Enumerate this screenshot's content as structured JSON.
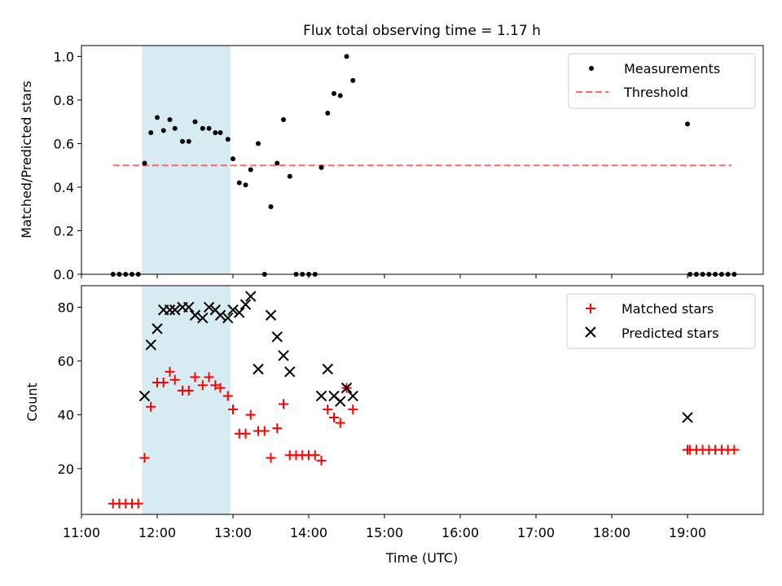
{
  "figure_title": "Flux total observing time = 1.17 h",
  "chart_data": [
    {
      "type": "scatter",
      "ylabel": "Matched/Predicted stars",
      "xlabel": "",
      "xlim": [
        "11:00",
        "20:00"
      ],
      "ylim": [
        0,
        1.05
      ],
      "yticks": [
        0.0,
        0.2,
        0.4,
        0.6,
        0.8,
        1.0
      ],
      "ytick_labels": [
        "0.0",
        "0.2",
        "0.4",
        "0.6",
        "0.8",
        "1.0"
      ],
      "highlight_span": {
        "start": "11:48",
        "end": "12:58",
        "color": "#add8e6"
      },
      "legend_position": "top-right",
      "legend": [
        {
          "label": "Measurements",
          "marker": "dot",
          "color": "#000000"
        },
        {
          "label": "Threshold",
          "marker": "dashed-line",
          "color": "#ff6666"
        }
      ],
      "threshold": {
        "y": 0.5,
        "x_start": "11:25",
        "x_end": "19:35"
      },
      "series": [
        {
          "name": "Measurements",
          "color": "#000000",
          "points": [
            [
              "11:25",
              0
            ],
            [
              "11:30",
              0
            ],
            [
              "11:35",
              0
            ],
            [
              "11:40",
              0
            ],
            [
              "11:45",
              0
            ],
            [
              "11:50",
              0.51
            ],
            [
              "11:55",
              0.65
            ],
            [
              "12:00",
              0.72
            ],
            [
              "12:05",
              0.66
            ],
            [
              "12:10",
              0.71
            ],
            [
              "12:14",
              0.67
            ],
            [
              "12:20",
              0.61
            ],
            [
              "12:25",
              0.61
            ],
            [
              "12:30",
              0.7
            ],
            [
              "12:36",
              0.67
            ],
            [
              "12:41",
              0.67
            ],
            [
              "12:46",
              0.65
            ],
            [
              "12:50",
              0.65
            ],
            [
              "12:56",
              0.62
            ],
            [
              "13:00",
              0.53
            ],
            [
              "13:05",
              0.42
            ],
            [
              "13:10",
              0.41
            ],
            [
              "13:14",
              0.48
            ],
            [
              "13:20",
              0.6
            ],
            [
              "13:25",
              0
            ],
            [
              "13:30",
              0.31
            ],
            [
              "13:35",
              0.51
            ],
            [
              "13:40",
              0.71
            ],
            [
              "13:45",
              0.45
            ],
            [
              "13:50",
              0
            ],
            [
              "13:55",
              0
            ],
            [
              "14:00",
              0
            ],
            [
              "14:05",
              0
            ],
            [
              "14:10",
              0.49
            ],
            [
              "14:15",
              0.74
            ],
            [
              "14:20",
              0.83
            ],
            [
              "14:25",
              0.82
            ],
            [
              "14:30",
              1.0
            ],
            [
              "14:35",
              0.89
            ],
            [
              "19:00",
              0.69
            ],
            [
              "19:02",
              0
            ],
            [
              "19:07",
              0
            ],
            [
              "19:12",
              0
            ],
            [
              "19:17",
              0
            ],
            [
              "19:22",
              0
            ],
            [
              "19:27",
              0
            ],
            [
              "19:32",
              0
            ],
            [
              "19:37",
              0
            ]
          ]
        }
      ]
    },
    {
      "type": "scatter",
      "ylabel": "Count",
      "xlabel": "Time (UTC)",
      "xlim": [
        "11:00",
        "20:00"
      ],
      "ylim": [
        3,
        88
      ],
      "yticks": [
        20,
        40,
        60,
        80
      ],
      "ytick_labels": [
        "20",
        "40",
        "60",
        "80"
      ],
      "xticks": [
        "11:00",
        "12:00",
        "13:00",
        "14:00",
        "15:00",
        "16:00",
        "17:00",
        "18:00",
        "19:00"
      ],
      "highlight_span": {
        "start": "11:48",
        "end": "12:58",
        "color": "#add8e6"
      },
      "legend_position": "top-right",
      "series": [
        {
          "name": "Matched stars",
          "marker": "plus",
          "color": "#ff0000",
          "points": [
            [
              "11:25",
              7
            ],
            [
              "11:30",
              7
            ],
            [
              "11:35",
              7
            ],
            [
              "11:40",
              7
            ],
            [
              "11:45",
              7
            ],
            [
              "11:50",
              24
            ],
            [
              "11:55",
              43
            ],
            [
              "12:00",
              52
            ],
            [
              "12:05",
              52
            ],
            [
              "12:10",
              56
            ],
            [
              "12:14",
              53
            ],
            [
              "12:20",
              49
            ],
            [
              "12:25",
              49
            ],
            [
              "12:30",
              54
            ],
            [
              "12:36",
              51
            ],
            [
              "12:41",
              54
            ],
            [
              "12:46",
              51
            ],
            [
              "12:50",
              50
            ],
            [
              "12:56",
              47
            ],
            [
              "13:00",
              42
            ],
            [
              "13:05",
              33
            ],
            [
              "13:10",
              33
            ],
            [
              "13:14",
              40
            ],
            [
              "13:20",
              34
            ],
            [
              "13:25",
              34
            ],
            [
              "13:30",
              24
            ],
            [
              "13:35",
              35
            ],
            [
              "13:40",
              44
            ],
            [
              "13:45",
              25
            ],
            [
              "13:50",
              25
            ],
            [
              "13:55",
              25
            ],
            [
              "14:00",
              25
            ],
            [
              "14:05",
              25
            ],
            [
              "14:10",
              23
            ],
            [
              "14:15",
              42
            ],
            [
              "14:20",
              39
            ],
            [
              "14:25",
              37
            ],
            [
              "14:30",
              50
            ],
            [
              "14:35",
              42
            ],
            [
              "19:00",
              27
            ],
            [
              "19:02",
              27
            ],
            [
              "19:07",
              27
            ],
            [
              "19:12",
              27
            ],
            [
              "19:17",
              27
            ],
            [
              "19:22",
              27
            ],
            [
              "19:27",
              27
            ],
            [
              "19:32",
              27
            ],
            [
              "19:37",
              27
            ]
          ]
        },
        {
          "name": "Predicted stars",
          "marker": "x",
          "color": "#000000",
          "points": [
            [
              "11:50",
              47
            ],
            [
              "11:55",
              66
            ],
            [
              "12:00",
              72
            ],
            [
              "12:05",
              79
            ],
            [
              "12:10",
              79
            ],
            [
              "12:14",
              79
            ],
            [
              "12:20",
              80
            ],
            [
              "12:25",
              80
            ],
            [
              "12:30",
              77
            ],
            [
              "12:36",
              76
            ],
            [
              "12:41",
              80
            ],
            [
              "12:46",
              79
            ],
            [
              "12:50",
              77
            ],
            [
              "12:56",
              76
            ],
            [
              "13:00",
              79
            ],
            [
              "13:05",
              78
            ],
            [
              "13:10",
              81
            ],
            [
              "13:14",
              84
            ],
            [
              "13:20",
              57
            ],
            [
              "13:30",
              77
            ],
            [
              "13:35",
              69
            ],
            [
              "13:40",
              62
            ],
            [
              "13:45",
              56
            ],
            [
              "14:10",
              47
            ],
            [
              "14:15",
              57
            ],
            [
              "14:20",
              47
            ],
            [
              "14:25",
              45
            ],
            [
              "14:30",
              50
            ],
            [
              "14:35",
              47
            ],
            [
              "19:00",
              39
            ]
          ]
        }
      ]
    }
  ]
}
